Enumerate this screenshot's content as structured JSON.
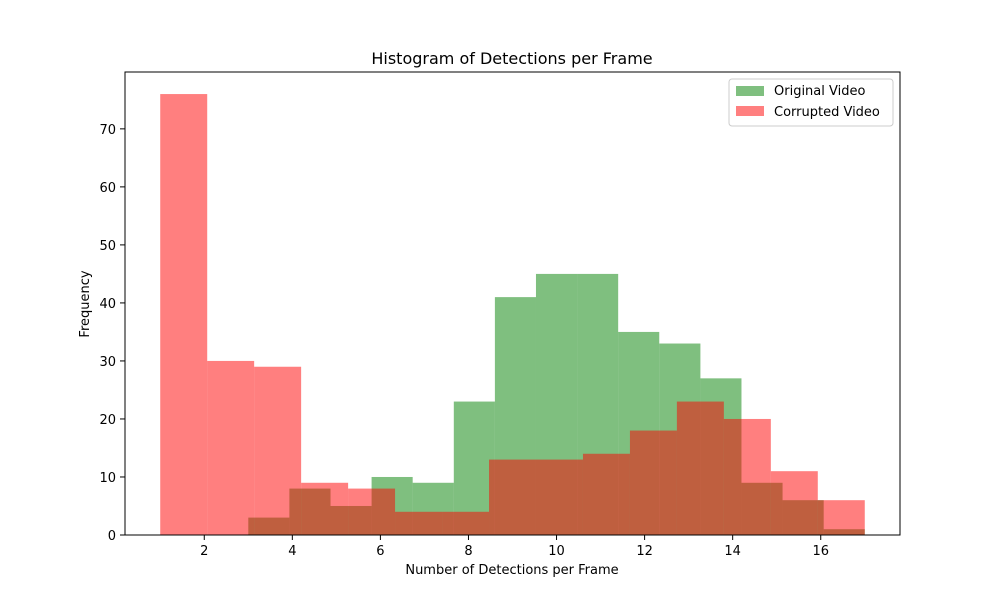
{
  "chart_data": {
    "type": "bar",
    "title": "Histogram of Detections per Frame",
    "xlabel": "Number of Detections per Frame",
    "ylabel": "Frequency",
    "xlim": [
      0.2,
      17.8
    ],
    "ylim": [
      0,
      79.8
    ],
    "xticks": [
      2,
      4,
      6,
      8,
      10,
      12,
      14,
      16
    ],
    "yticks": [
      0,
      10,
      20,
      30,
      40,
      50,
      60,
      70
    ],
    "legend_position": "top-right",
    "grid": false,
    "series": [
      {
        "name": "Original Video",
        "color": "#008000",
        "opacity": 0.5,
        "bin_edges": [
          3.0,
          3.933,
          4.867,
          5.8,
          6.733,
          7.667,
          8.6,
          9.533,
          10.467,
          11.4,
          12.333,
          13.267,
          14.2,
          15.133,
          16.067,
          17.0
        ],
        "counts": [
          3,
          8,
          5,
          10,
          9,
          23,
          41,
          45,
          45,
          35,
          33,
          27,
          9,
          6,
          1
        ]
      },
      {
        "name": "Corrupted Video",
        "color": "#ff0000",
        "opacity": 0.5,
        "bin_edges": [
          1.0,
          2.067,
          3.133,
          4.2,
          5.267,
          6.333,
          7.4,
          8.467,
          9.533,
          10.6,
          11.667,
          12.733,
          13.8,
          14.867,
          15.933,
          17.0
        ],
        "counts": [
          76,
          30,
          29,
          9,
          8,
          4,
          4,
          13,
          13,
          14,
          18,
          23,
          20,
          11,
          6
        ]
      }
    ]
  }
}
